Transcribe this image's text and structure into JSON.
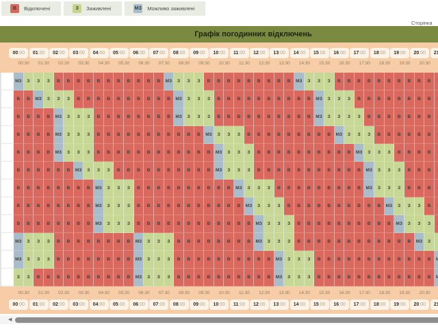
{
  "title": "Графік погодинних відключень",
  "page_link": "Сторінка",
  "legend": {
    "items": [
      {
        "code": "В",
        "label": "Відключені",
        "color": "#d9655b"
      },
      {
        "code": "З",
        "label": "Заживлені",
        "color": "#c4d590"
      },
      {
        "code": "МЗ",
        "label": "Можливо заживлені",
        "color": "#a7bcca"
      }
    ]
  },
  "colors": {
    "disconnected": "#d9695e",
    "powered": "#c7d795",
    "maybe_powered": "#a8bdc9",
    "title_bar": "#7a8b41",
    "time_band": "#f6cda6"
  },
  "schedule": {
    "hours": [
      "00:00",
      "01:00",
      "02:00",
      "03:00",
      "04:00",
      "05:00",
      "06:00",
      "07:00",
      "08:00",
      "09:00",
      "10:00",
      "11:00",
      "12:00",
      "13:00",
      "14:00",
      "15:00",
      "16:00",
      "17:00",
      "18:00",
      "19:00",
      "20:00",
      "21:00"
    ],
    "half_hours": [
      "00:30",
      "01:30",
      "02:30",
      "03:30",
      "04:30",
      "05:30",
      "06:30",
      "07:30",
      "08:30",
      "09:30",
      "10:30",
      "11:30",
      "12:30",
      "13:30",
      "14:30",
      "15:30",
      "16:30",
      "17:30",
      "18:30",
      "19:30",
      "20:30",
      "21:30"
    ],
    "rows": [
      "МЗ З З З В В В В В В В В В В В МЗ З З З В В В В В В В В В МЗ З З З В В В В В В В В В В В",
      "В В МЗ З З З В В В В В В В В В В МЗ З З З В В В В В В В В В В МЗ З З З В В В В В В В В В",
      "В В В В МЗ З З З В В В В В В В В МЗ З З З В В В В В В В В В В МЗ З З З З В В В В В В В В",
      "В В В В МЗ З З З В В В В В В В В В В В МЗ З З З В В В В В В В В В МЗ З З З В В В В В В В",
      "В В В В МЗ З З З В В В В В В В В В В В В МЗ З З З В В В В В В В В В В МЗ З З З В В В В В",
      "В В В В В В МЗ З З З В В В В В В В В В В МЗ З З З В В В В В В В В В В В МЗ З З З В В В В",
      "В В В В В В В В МЗ З З З В В В В В В В В В В МЗ З З З В В В В В В В В В МЗ З З З В В В В",
      "В В В В В В В В МЗ З З З В В В В В В В В В В В МЗ З З З В В В В В В В В В В МЗ З З З В В",
      "В В В В В В В В МЗ З З З В В В В В В В В В В В В МЗ З З З В В В В В В В В В В МЗ З З З В",
      "МЗ З З З В В В В В В В В МЗ З З З В В В В В В В В МЗ З З З В В В В В В В В В В В В МЗ З З",
      "МЗ З З З В В В В В В В В МЗ З З З В В В В В В В В В В МЗ З З З В В В В В В В В В В В В МЗ",
      "З З В В В В В В В В В В МЗ З З З В В В В В В В В В В МЗ З З З В В В В В В В В В В В В МЗ"
    ]
  }
}
